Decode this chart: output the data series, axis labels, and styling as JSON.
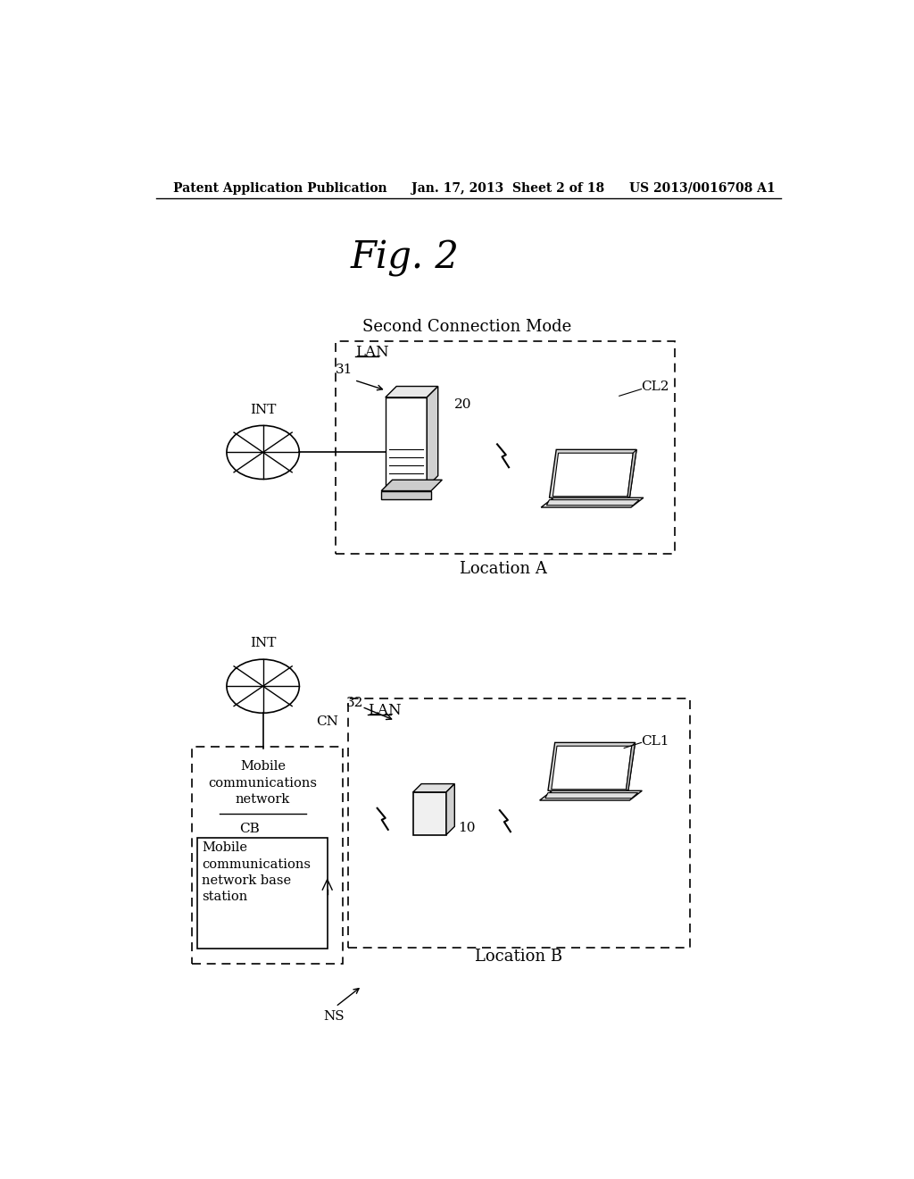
{
  "bg_color": "#ffffff",
  "header_left": "Patent Application Publication",
  "header_mid": "Jan. 17, 2013  Sheet 2 of 18",
  "header_right": "US 2013/0016708 A1",
  "fig_title": "Fig. 2",
  "top_label": "Second Connection Mode",
  "top_box_label": "LAN",
  "top_location": "Location A",
  "top_number_31": "31",
  "top_number_20": "20",
  "top_int": "INT",
  "top_cl": "CL2",
  "bot_label": "Location B",
  "bot_box_label": "LAN",
  "bot_int": "INT",
  "bot_cn": "CN",
  "bot_32": "32",
  "bot_mobile_net_label": "Mobile\ncommunications\nnetwork",
  "bot_cb": "CB",
  "bot_base_label": "Mobile\ncommunications\nnetwork base\nstation",
  "bot_ns": "NS",
  "bot_10": "10",
  "bot_cl": "CL1"
}
